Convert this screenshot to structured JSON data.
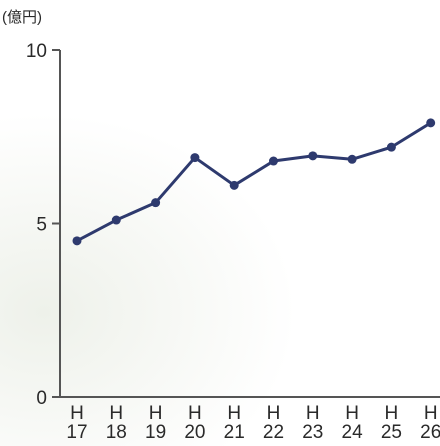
{
  "chart_data": {
    "type": "line",
    "unit_label": "(億円)",
    "categories": [
      "H17",
      "H18",
      "H19",
      "H20",
      "H21",
      "H22",
      "H23",
      "H24",
      "H25",
      "H26"
    ],
    "category_lines": [
      [
        "H",
        "17"
      ],
      [
        "H",
        "18"
      ],
      [
        "H",
        "19"
      ],
      [
        "H",
        "20"
      ],
      [
        "H",
        "21"
      ],
      [
        "H",
        "22"
      ],
      [
        "H",
        "23"
      ],
      [
        "H",
        "24"
      ],
      [
        "H",
        "25"
      ],
      [
        "H",
        "26"
      ]
    ],
    "series": [
      {
        "values": [
          4.5,
          5.1,
          5.6,
          6.9,
          6.1,
          6.8,
          6.95,
          6.85,
          7.2,
          7.9
        ],
        "color": "#2e3a6e"
      }
    ],
    "y_ticks": [
      0,
      5,
      10
    ],
    "ylim": [
      0,
      10
    ],
    "grid": false,
    "xlabel": "",
    "ylabel": ""
  }
}
